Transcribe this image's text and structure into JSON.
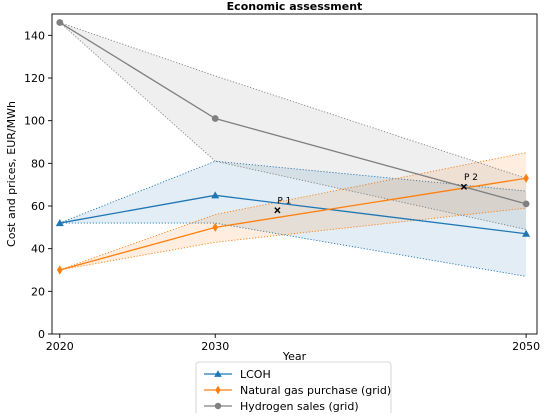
{
  "chart_data": {
    "type": "line",
    "title": "Economic assessment",
    "xlabel": "Year",
    "ylabel": "Cost and prices, EUR/MWh",
    "x": [
      2020,
      2030,
      2050
    ],
    "xticks": [
      2020,
      2030,
      2050
    ],
    "yticks": [
      0,
      20,
      40,
      60,
      80,
      100,
      120,
      140
    ],
    "xlim": [
      2019.5,
      2050.7
    ],
    "ylim": [
      0,
      150
    ],
    "grid": false,
    "legend_position": "bottom-center",
    "series": [
      {
        "name": "LCOH",
        "values": [
          52,
          65,
          47
        ],
        "lower": [
          52,
          52,
          27
        ],
        "upper": [
          52,
          81,
          67
        ],
        "color": "#1f77b4",
        "marker": "triangle"
      },
      {
        "name": "Natural gas purchase (grid)",
        "values": [
          30,
          50,
          73
        ],
        "lower": [
          30,
          43,
          59
        ],
        "upper": [
          30,
          56,
          85
        ],
        "color": "#ff7f0e",
        "marker": "diamond"
      },
      {
        "name": "Hydrogen sales (grid)",
        "values": [
          146,
          101,
          61
        ],
        "lower": [
          146,
          81,
          49
        ],
        "upper": [
          146,
          121,
          73
        ],
        "color": "#808080",
        "marker": "circle"
      }
    ],
    "annotations": [
      {
        "label": "P 1",
        "x": 2034,
        "y": 58
      },
      {
        "label": "P 2",
        "x": 2046,
        "y": 69
      }
    ]
  }
}
